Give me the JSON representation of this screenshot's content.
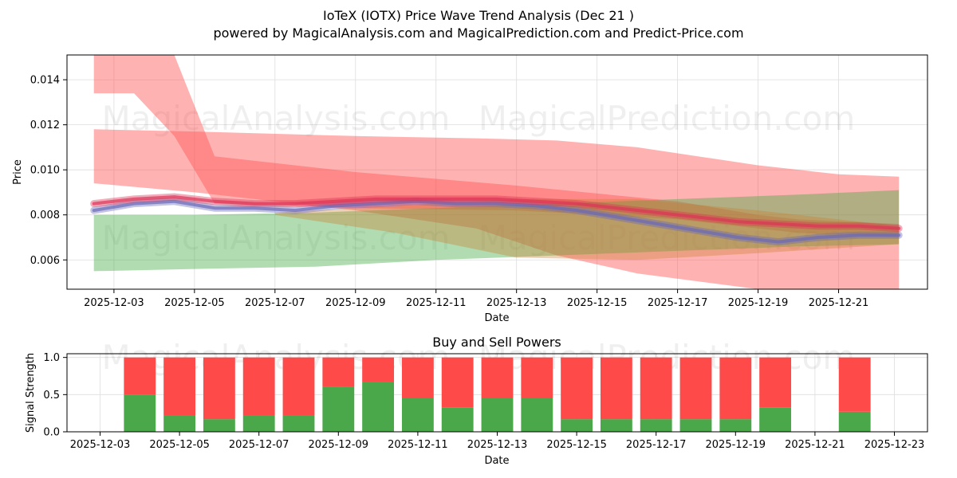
{
  "title": "IoTeX (IOTX) Price Wave Trend Analysis (Dec 21 )",
  "subtitle": "powered by MagicalAnalysis.com and MagicalPrediction.com and Predict-Price.com",
  "watermarks": [
    "MagicalAnalysis.com",
    "MagicalPrediction.com"
  ],
  "chart_data": [
    {
      "type": "area",
      "name": "price-wave",
      "xlabel": "Date",
      "ylabel": "Price",
      "xlim": [
        "2025-12-01T20:00",
        "2025-12-23T05:00"
      ],
      "ylim": [
        0.0047,
        0.0151
      ],
      "yticks": [
        0.006,
        0.008,
        0.01,
        0.012,
        0.014
      ],
      "ytick_labels": [
        "0.006",
        "0.008",
        "0.010",
        "0.012",
        "0.014"
      ],
      "xticks": [
        "2025-12-03",
        "2025-12-05",
        "2025-12-07",
        "2025-12-09",
        "2025-12-11",
        "2025-12-13",
        "2025-12-15",
        "2025-12-17",
        "2025-12-19",
        "2025-12-21"
      ],
      "grid": true,
      "bands": [
        {
          "name": "upper-red-band",
          "color": "#ff5555",
          "opacity": 0.45,
          "x": [
            "2025-12-02T12:00",
            "2025-12-03T12:00",
            "2025-12-04T12:00",
            "2025-12-05T12:00",
            "2025-12-09T00:00",
            "2025-12-13T00:00",
            "2025-12-17T00:00",
            "2025-12-19T00:00",
            "2025-12-20T00:00",
            "2025-12-22T12:00"
          ],
          "upper": [
            0.0152,
            0.0152,
            0.0152,
            0.0106,
            0.0099,
            0.0093,
            0.0086,
            0.008,
            0.0078,
            0.0076
          ],
          "lower": [
            0.0134,
            0.0134,
            0.0115,
            0.0085,
            0.0083,
            0.0082,
            0.0078,
            0.0074,
            0.0072,
            0.007
          ]
        },
        {
          "name": "wide-red-band",
          "color": "#ff5555",
          "opacity": 0.45,
          "x": [
            "2025-12-02T12:00",
            "2025-12-05T00:00",
            "2025-12-09T00:00",
            "2025-12-12T00:00",
            "2025-12-14T00:00",
            "2025-12-16T00:00",
            "2025-12-19T00:00",
            "2025-12-21T00:00",
            "2025-12-22T12:00"
          ],
          "upper": [
            0.0118,
            0.0117,
            0.0115,
            0.0114,
            0.0113,
            0.011,
            0.0102,
            0.0098,
            0.0097
          ],
          "lower": [
            0.0094,
            0.009,
            0.0082,
            0.0074,
            0.0062,
            0.0054,
            0.0046,
            0.0043,
            0.0042
          ]
        },
        {
          "name": "green-band",
          "color": "#44aa44",
          "opacity": 0.42,
          "x": [
            "2025-12-02T12:00",
            "2025-12-05T00:00",
            "2025-12-08T00:00",
            "2025-12-11T00:00",
            "2025-12-14T00:00",
            "2025-12-17T00:00",
            "2025-12-20T00:00",
            "2025-12-22T12:00"
          ],
          "upper": [
            0.008,
            0.008,
            0.0081,
            0.0083,
            0.0085,
            0.0087,
            0.0089,
            0.0091
          ],
          "lower": [
            0.0055,
            0.0056,
            0.0057,
            0.006,
            0.0062,
            0.0064,
            0.0066,
            0.0067
          ]
        },
        {
          "name": "orange-band",
          "color": "#cc7a2a",
          "opacity": 0.35,
          "x": [
            "2025-12-07T00:00",
            "2025-12-10T00:00",
            "2025-12-13T00:00",
            "2025-12-16T00:00",
            "2025-12-19T00:00",
            "2025-12-22T12:00"
          ],
          "upper": [
            0.0081,
            0.0084,
            0.0087,
            0.0087,
            0.0082,
            0.0075
          ],
          "lower": [
            0.008,
            0.0072,
            0.0061,
            0.006,
            0.0063,
            0.0067
          ]
        }
      ],
      "series": [
        {
          "name": "blue-wave",
          "color": "#6a6ab8",
          "x": [
            "2025-12-02T12:00",
            "2025-12-03T12:00",
            "2025-12-04T12:00",
            "2025-12-05T12:00",
            "2025-12-06T12:00",
            "2025-12-07T12:00",
            "2025-12-08T12:00",
            "2025-12-09T12:00",
            "2025-12-10T12:00",
            "2025-12-11T12:00",
            "2025-12-12T12:00",
            "2025-12-13T12:00",
            "2025-12-14T12:00",
            "2025-12-15T12:00",
            "2025-12-16T12:00",
            "2025-12-17T12:00",
            "2025-12-18T12:00",
            "2025-12-19T12:00",
            "2025-12-20T12:00",
            "2025-12-21T12:00",
            "2025-12-22T12:00"
          ],
          "values": [
            0.0082,
            0.0085,
            0.0086,
            0.0083,
            0.0083,
            0.0082,
            0.0084,
            0.0085,
            0.0086,
            0.0085,
            0.0085,
            0.0084,
            0.0082,
            0.0079,
            0.0076,
            0.0073,
            0.007,
            0.0068,
            0.007,
            0.0071,
            0.0071
          ]
        },
        {
          "name": "red-wave",
          "color": "#dd3355",
          "x": [
            "2025-12-02T12:00",
            "2025-12-03T12:00",
            "2025-12-04T12:00",
            "2025-12-05T12:00",
            "2025-12-06T12:00",
            "2025-12-07T12:00",
            "2025-12-08T12:00",
            "2025-12-09T12:00",
            "2025-12-10T12:00",
            "2025-12-11T12:00",
            "2025-12-12T12:00",
            "2025-12-13T12:00",
            "2025-12-14T12:00",
            "2025-12-15T12:00",
            "2025-12-16T12:00",
            "2025-12-17T12:00",
            "2025-12-18T12:00",
            "2025-12-19T12:00",
            "2025-12-20T12:00",
            "2025-12-21T12:00",
            "2025-12-22T12:00"
          ],
          "values": [
            0.0085,
            0.0087,
            0.0088,
            0.0086,
            0.0085,
            0.0085,
            0.0086,
            0.0087,
            0.0087,
            0.0087,
            0.0087,
            0.0086,
            0.0085,
            0.0083,
            0.0081,
            0.0079,
            0.0077,
            0.0076,
            0.0075,
            0.0075,
            0.0074
          ]
        }
      ]
    },
    {
      "type": "bar",
      "name": "buy-sell-powers",
      "title": "Buy and Sell Powers",
      "xlabel": "Date",
      "ylabel": "Signal Strength",
      "xlim": [
        "2025-12-02T04:00",
        "2025-12-23T20:00"
      ],
      "ylim": [
        0,
        1.05
      ],
      "yticks": [
        0.0,
        0.5,
        1.0
      ],
      "ytick_labels": [
        "0.0",
        "0.5",
        "1.0"
      ],
      "xticks": [
        "2025-12-03",
        "2025-12-05",
        "2025-12-07",
        "2025-12-09",
        "2025-12-11",
        "2025-12-13",
        "2025-12-15",
        "2025-12-17",
        "2025-12-19",
        "2025-12-21",
        "2025-12-23"
      ],
      "grid": true,
      "categories": [
        "2025-12-04",
        "2025-12-05",
        "2025-12-06",
        "2025-12-07",
        "2025-12-08",
        "2025-12-09",
        "2025-12-10",
        "2025-12-11",
        "2025-12-12",
        "2025-12-13",
        "2025-12-14",
        "2025-12-15",
        "2025-12-16",
        "2025-12-17",
        "2025-12-18",
        "2025-12-19",
        "2025-12-20",
        "2025-12-22"
      ],
      "series": [
        {
          "name": "Buy",
          "color": "#4aa84a",
          "values": [
            0.5,
            0.22,
            0.17,
            0.22,
            0.22,
            0.61,
            0.67,
            0.45,
            0.33,
            0.45,
            0.45,
            0.17,
            0.17,
            0.17,
            0.17,
            0.17,
            0.33,
            0.27
          ]
        },
        {
          "name": "Sell",
          "color": "#ff4a4a",
          "values": [
            0.5,
            0.78,
            0.83,
            0.78,
            0.78,
            0.39,
            0.33,
            0.55,
            0.67,
            0.55,
            0.55,
            0.83,
            0.83,
            0.83,
            0.83,
            0.83,
            0.67,
            0.73
          ]
        }
      ]
    }
  ]
}
